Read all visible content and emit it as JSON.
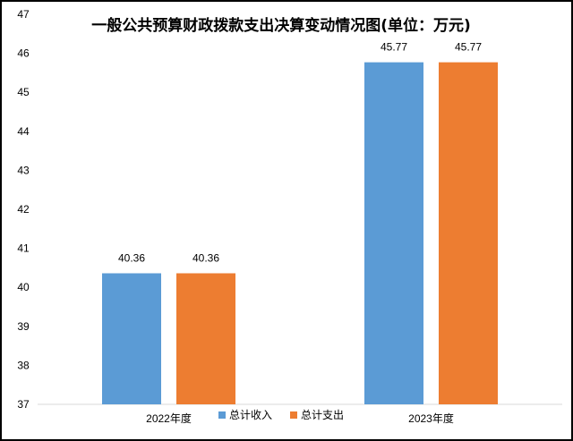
{
  "chart_data": {
    "type": "bar",
    "title": "一般公共预算财政拨款支出决算变动情况图(单位：万元)",
    "categories": [
      "2022年度",
      "2023年度"
    ],
    "series": [
      {
        "name": "总计收入",
        "values": [
          40.36,
          45.77
        ],
        "color": "#5b9bd5"
      },
      {
        "name": "总计支出",
        "values": [
          40.36,
          45.77
        ],
        "color": "#ed7d31"
      }
    ],
    "data_labels": [
      [
        "40.36",
        "45.77"
      ],
      [
        "40.36",
        "45.77"
      ]
    ],
    "ylim": [
      37,
      47
    ],
    "yticks": [
      "37",
      "38",
      "39",
      "40",
      "41",
      "42",
      "43",
      "44",
      "45",
      "46",
      "47"
    ],
    "grid": false,
    "legend_position": "bottom"
  }
}
